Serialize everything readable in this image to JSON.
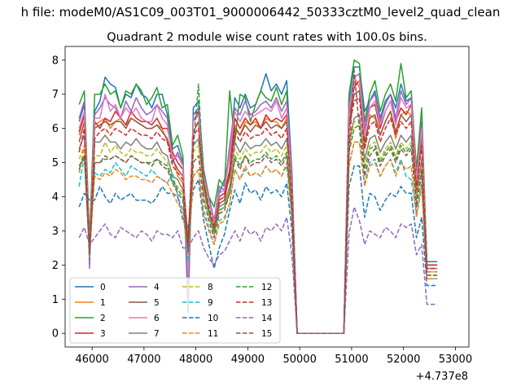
{
  "chart_data": {
    "type": "line",
    "suptitle": "h file: modeM0/AS1C09_003T01_9000006442_50333cztM0_level2_quad_clean",
    "title": "Quadrant 2 module wise count rates with 100.0s bins.",
    "xlabel": "",
    "ylabel": "",
    "x_offset_label": "+4.737e8",
    "xlim": [
      45480,
      53260
    ],
    "ylim": [
      -0.4,
      8.4
    ],
    "xticks": [
      46000,
      47000,
      48000,
      49000,
      50000,
      51000,
      52000,
      53000
    ],
    "yticks": [
      0,
      1,
      2,
      3,
      4,
      5,
      6,
      7,
      8
    ],
    "grid": false,
    "legend_position": "lower-left",
    "x": [
      45750,
      45850,
      45950,
      46050,
      46150,
      46250,
      46350,
      46450,
      46550,
      46650,
      46750,
      46850,
      46950,
      47050,
      47150,
      47250,
      47350,
      47450,
      47550,
      47650,
      47750,
      47850,
      47950,
      48050,
      48150,
      48250,
      48350,
      48450,
      48550,
      48650,
      48750,
      48850,
      48950,
      49050,
      49150,
      49250,
      49350,
      49450,
      49550,
      49650,
      49750,
      49850,
      49950,
      50050,
      50150,
      50250,
      50350,
      50450,
      50550,
      50650,
      50750,
      50850,
      50950,
      51050,
      51150,
      51250,
      51350,
      51450,
      51550,
      51650,
      51750,
      51850,
      51950,
      52050,
      52150,
      52250,
      52350,
      52450,
      52550,
      52650
    ],
    "series": [
      {
        "name": "0",
        "color": "#1f77b4",
        "dash": false,
        "values": [
          6.2,
          6.7,
          2.6,
          6.5,
          6.8,
          7.5,
          7.3,
          7.2,
          6.6,
          7.0,
          6.9,
          7.3,
          7.0,
          6.9,
          6.6,
          7.0,
          7.0,
          6.4,
          5.4,
          5.5,
          5.0,
          0.6,
          6.6,
          6.8,
          4.8,
          4.0,
          3.3,
          4.1,
          4.5,
          5.2,
          6.9,
          6.6,
          7.0,
          6.6,
          6.7,
          7.1,
          7.6,
          7.1,
          7.3,
          7.0,
          7.4,
          4.7,
          0,
          0,
          0,
          0,
          0,
          0,
          0,
          0,
          0,
          0,
          6.9,
          7.8,
          7.8,
          6.5,
          6.8,
          7.1,
          6.3,
          6.8,
          7.0,
          6.6,
          7.3,
          6.8,
          6.9,
          4.8,
          6.2,
          2.1,
          2.1,
          2.1
        ]
      },
      {
        "name": "1",
        "color": "#ff7f0e",
        "dash": false,
        "values": [
          5.8,
          6.4,
          2.6,
          6.1,
          6.2,
          6.3,
          6.0,
          6.2,
          6.3,
          6.1,
          6.3,
          6.2,
          6.1,
          6.0,
          6.0,
          6.1,
          6.0,
          5.6,
          5.2,
          4.6,
          4.4,
          2.6,
          5.9,
          6.2,
          4.5,
          3.6,
          3.0,
          3.9,
          4.0,
          4.6,
          6.1,
          5.8,
          6.2,
          6.1,
          6.2,
          6.0,
          6.3,
          6.2,
          6.2,
          6.0,
          6.3,
          4.2,
          0,
          0,
          0,
          0,
          0,
          0,
          0,
          0,
          0,
          0,
          6.0,
          7.5,
          7.2,
          5.4,
          6.4,
          6.3,
          5.8,
          6.2,
          6.5,
          5.7,
          6.4,
          6.5,
          6.4,
          4.2,
          5.6,
          1.9,
          1.9,
          1.9
        ]
      },
      {
        "name": "2",
        "color": "#2ca02c",
        "dash": false,
        "values": [
          6.7,
          7.1,
          2.7,
          7.0,
          7.0,
          7.3,
          7.0,
          7.1,
          6.6,
          7.1,
          7.0,
          7.3,
          7.1,
          6.7,
          6.9,
          7.2,
          6.6,
          6.7,
          5.5,
          5.8,
          5.2,
          0.8,
          6.4,
          6.5,
          4.7,
          4.0,
          3.7,
          4.5,
          4.3,
          7.1,
          5.6,
          7.0,
          6.9,
          6.2,
          6.7,
          7.1,
          6.9,
          6.8,
          7.2,
          6.7,
          7.1,
          4.2,
          0,
          0,
          0,
          0,
          0,
          0,
          0,
          0,
          0,
          0,
          7.0,
          8.0,
          7.9,
          6.2,
          7.0,
          7.4,
          6.5,
          7.0,
          7.3,
          6.8,
          7.9,
          6.9,
          7.1,
          4.8,
          6.6,
          2.0,
          2.0,
          2.0
        ]
      },
      {
        "name": "3",
        "color": "#d62728",
        "dash": false,
        "values": [
          5.9,
          6.4,
          2.4,
          6.2,
          6.0,
          6.3,
          6.2,
          6.5,
          6.3,
          6.1,
          6.5,
          6.3,
          6.2,
          6.2,
          6.1,
          6.3,
          6.0,
          6.0,
          5.3,
          5.0,
          4.8,
          2.3,
          6.2,
          6.5,
          4.6,
          3.9,
          3.2,
          4.0,
          4.1,
          4.8,
          6.3,
          6.0,
          6.3,
          6.1,
          6.3,
          6.0,
          6.4,
          6.2,
          6.3,
          6.2,
          6.4,
          4.4,
          0,
          0,
          0,
          0,
          0,
          0,
          0,
          0,
          0,
          0,
          6.4,
          7.2,
          7.4,
          5.9,
          6.6,
          6.7,
          6.0,
          6.5,
          6.8,
          6.2,
          6.6,
          6.4,
          6.7,
          4.6,
          5.9,
          2.0,
          2.0,
          2.0
        ]
      },
      {
        "name": "4",
        "color": "#9467bd",
        "dash": false,
        "values": [
          6.3,
          6.8,
          1.9,
          6.4,
          6.6,
          6.9,
          6.7,
          6.6,
          6.3,
          6.8,
          6.5,
          6.9,
          6.6,
          6.4,
          6.5,
          6.7,
          6.5,
          6.3,
          5.0,
          5.3,
          4.9,
          1.0,
          6.4,
          6.6,
          4.6,
          3.9,
          3.3,
          4.3,
          4.2,
          5.5,
          6.6,
          6.4,
          6.8,
          6.4,
          6.5,
          6.7,
          6.8,
          6.6,
          6.9,
          6.5,
          6.8,
          4.4,
          0,
          0,
          0,
          0,
          0,
          0,
          0,
          0,
          0,
          0,
          6.7,
          7.5,
          7.6,
          6.0,
          6.8,
          7.0,
          6.2,
          6.7,
          7.0,
          6.3,
          7.1,
          6.7,
          6.9,
          4.5,
          6.1,
          1.9,
          1.9,
          1.9
        ]
      },
      {
        "name": "5",
        "color": "#8c564b",
        "dash": false,
        "values": [
          5.6,
          6.2,
          2.5,
          6.0,
          6.1,
          6.2,
          6.1,
          6.2,
          6.2,
          6.0,
          6.3,
          6.2,
          6.1,
          6.0,
          6.0,
          6.1,
          5.9,
          5.7,
          5.1,
          4.8,
          4.6,
          2.7,
          5.9,
          6.2,
          4.4,
          3.6,
          3.0,
          3.8,
          3.9,
          4.7,
          6.0,
          5.8,
          6.1,
          5.9,
          6.1,
          6.0,
          6.2,
          6.0,
          6.1,
          6.0,
          6.2,
          4.1,
          0,
          0,
          0,
          0,
          0,
          0,
          0,
          0,
          0,
          0,
          6.1,
          7.0,
          7.1,
          5.6,
          6.3,
          6.4,
          5.8,
          6.2,
          6.5,
          5.9,
          6.4,
          6.2,
          6.4,
          4.4,
          5.7,
          1.9,
          1.9,
          1.9
        ]
      },
      {
        "name": "6",
        "color": "#e377c2",
        "dash": false,
        "values": [
          6.0,
          6.5,
          2.5,
          6.3,
          6.3,
          7.0,
          6.5,
          6.7,
          6.3,
          6.6,
          6.4,
          6.6,
          6.3,
          6.2,
          6.2,
          6.7,
          6.3,
          6.1,
          5.1,
          5.2,
          4.9,
          1.7,
          6.2,
          6.4,
          4.6,
          3.9,
          3.2,
          4.1,
          4.2,
          5.2,
          6.5,
          6.2,
          6.5,
          6.3,
          6.4,
          6.5,
          6.6,
          6.5,
          6.8,
          6.3,
          6.6,
          4.3,
          0,
          0,
          0,
          0,
          0,
          0,
          0,
          0,
          0,
          0,
          6.5,
          7.3,
          7.4,
          5.8,
          6.6,
          6.8,
          6.1,
          6.5,
          6.8,
          6.1,
          6.9,
          6.6,
          6.7,
          4.5,
          6.0,
          1.9,
          1.9,
          1.9
        ]
      },
      {
        "name": "7",
        "color": "#7f7f7f",
        "dash": false,
        "values": [
          5.4,
          5.8,
          2.3,
          5.6,
          5.6,
          5.8,
          5.6,
          5.6,
          5.4,
          5.6,
          5.5,
          5.7,
          5.5,
          5.4,
          5.4,
          5.6,
          5.3,
          5.2,
          4.6,
          4.5,
          4.2,
          2.4,
          5.5,
          5.7,
          4.2,
          3.5,
          2.9,
          3.7,
          3.8,
          4.3,
          5.6,
          5.3,
          5.6,
          5.4,
          5.5,
          5.5,
          5.7,
          5.5,
          5.6,
          5.4,
          5.7,
          3.9,
          0,
          0,
          0,
          0,
          0,
          0,
          0,
          0,
          0,
          0,
          5.6,
          6.3,
          6.4,
          5.1,
          5.7,
          5.8,
          5.3,
          5.6,
          5.8,
          5.4,
          5.8,
          5.6,
          5.8,
          4.0,
          5.1,
          1.8,
          1.8,
          1.8
        ]
      },
      {
        "name": "8",
        "color": "#bcbd22",
        "dash": true,
        "values": [
          5.1,
          5.5,
          2.2,
          5.2,
          5.2,
          5.6,
          5.3,
          5.5,
          5.3,
          5.2,
          5.4,
          5.3,
          5.3,
          5.2,
          5.2,
          5.4,
          5.2,
          5.0,
          4.4,
          4.3,
          4.1,
          2.5,
          5.3,
          5.5,
          4.0,
          3.4,
          2.9,
          3.6,
          3.7,
          4.2,
          5.4,
          5.1,
          5.4,
          5.2,
          5.3,
          5.3,
          5.5,
          5.3,
          5.4,
          5.2,
          5.5,
          3.8,
          0,
          0,
          0,
          0,
          0,
          0,
          0,
          0,
          0,
          0,
          5.4,
          6.2,
          6.2,
          4.9,
          5.5,
          5.6,
          5.1,
          5.4,
          5.6,
          5.2,
          5.6,
          5.4,
          5.6,
          3.9,
          4.9,
          1.8,
          1.8,
          1.8
        ]
      },
      {
        "name": "9",
        "color": "#17becf",
        "dash": true,
        "values": [
          4.3,
          5.2,
          2.3,
          4.7,
          4.6,
          4.8,
          4.7,
          5.0,
          4.8,
          4.6,
          4.9,
          4.8,
          4.7,
          4.6,
          4.8,
          4.6,
          4.5,
          4.4,
          4.7,
          4.0,
          3.6,
          2.1,
          4.6,
          4.8,
          3.6,
          3.1,
          2.6,
          3.3,
          3.4,
          3.8,
          4.8,
          4.5,
          4.8,
          4.6,
          4.7,
          4.6,
          4.9,
          4.7,
          4.8,
          4.6,
          4.9,
          3.4,
          0,
          0,
          0,
          0,
          0,
          0,
          0,
          0,
          0,
          0,
          4.9,
          5.6,
          5.6,
          4.4,
          5.0,
          5.1,
          4.6,
          4.9,
          5.1,
          4.7,
          5.1,
          4.6,
          4.5,
          3.5,
          4.4,
          1.6,
          1.6,
          1.6
        ]
      },
      {
        "name": "10",
        "color": "#1f77b4",
        "dash": true,
        "values": [
          3.7,
          4.1,
          3.9,
          3.9,
          4.3,
          4.0,
          3.8,
          4.1,
          3.9,
          4.0,
          4.1,
          3.9,
          3.9,
          3.9,
          3.8,
          4.0,
          4.3,
          4.1,
          4.1,
          4.0,
          3.3,
          3.1,
          4.2,
          4.5,
          3.3,
          2.6,
          1.9,
          2.5,
          2.9,
          3.6,
          4.2,
          3.8,
          4.4,
          4.1,
          4.2,
          3.9,
          4.3,
          4.1,
          4.2,
          4.0,
          4.4,
          3.0,
          0,
          0,
          0,
          0,
          0,
          0,
          0,
          0,
          0,
          0,
          4.3,
          4.9,
          4.9,
          3.4,
          4.1,
          4.0,
          3.6,
          3.9,
          4.1,
          4.0,
          4.3,
          4.1,
          4.1,
          2.8,
          3.4,
          1.4,
          1.4,
          1.4
        ]
      },
      {
        "name": "11",
        "color": "#ff7f0e",
        "dash": true,
        "values": [
          4.7,
          5.5,
          2.4,
          4.6,
          4.5,
          4.7,
          4.6,
          4.8,
          4.7,
          4.5,
          4.6,
          4.6,
          4.5,
          4.5,
          4.4,
          4.6,
          4.5,
          4.4,
          4.1,
          3.8,
          3.6,
          2.3,
          4.6,
          4.8,
          3.5,
          3.0,
          2.6,
          3.2,
          3.3,
          3.8,
          4.8,
          4.5,
          4.9,
          4.6,
          4.7,
          4.6,
          4.9,
          4.7,
          4.8,
          4.6,
          5.0,
          3.4,
          0,
          0,
          0,
          0,
          0,
          0,
          0,
          0,
          0,
          0,
          4.9,
          5.6,
          5.6,
          4.3,
          4.9,
          5.0,
          4.6,
          4.9,
          5.1,
          4.6,
          5.0,
          4.8,
          4.9,
          3.4,
          4.3,
          1.6,
          1.6,
          1.6
        ]
      },
      {
        "name": "12",
        "color": "#2ca02c",
        "dash": true,
        "values": [
          4.9,
          5.2,
          2.5,
          5.0,
          5.0,
          5.1,
          5.1,
          5.2,
          5.1,
          5.0,
          5.2,
          5.1,
          5.0,
          5.0,
          5.0,
          5.1,
          5.0,
          4.9,
          4.5,
          4.2,
          4.0,
          2.5,
          5.4,
          7.3,
          4.3,
          3.6,
          3.0,
          3.6,
          3.7,
          4.1,
          5.2,
          4.9,
          5.2,
          5.0,
          5.1,
          5.1,
          5.3,
          5.1,
          5.2,
          5.0,
          5.3,
          3.7,
          0,
          0,
          0,
          0,
          0,
          0,
          0,
          0,
          0,
          0,
          5.3,
          6.0,
          6.1,
          4.8,
          5.4,
          5.5,
          5.0,
          5.3,
          5.5,
          5.1,
          5.5,
          5.3,
          5.5,
          3.8,
          4.8,
          1.7,
          1.7,
          1.7
        ]
      },
      {
        "name": "13",
        "color": "#d62728",
        "dash": true,
        "values": [
          5.3,
          6.0,
          2.4,
          5.7,
          5.9,
          6.0,
          5.8,
          6.0,
          5.9,
          5.8,
          6.0,
          5.9,
          5.8,
          5.8,
          5.7,
          5.9,
          5.7,
          5.6,
          4.9,
          4.7,
          4.5,
          2.5,
          5.8,
          6.0,
          4.4,
          3.7,
          3.1,
          3.9,
          4.0,
          4.6,
          5.9,
          5.6,
          5.9,
          5.7,
          5.8,
          5.8,
          6.0,
          5.8,
          5.9,
          5.7,
          6.0,
          4.1,
          0,
          0,
          0,
          0,
          0,
          0,
          0,
          0,
          0,
          0,
          6.0,
          6.8,
          6.9,
          5.4,
          6.1,
          6.2,
          5.6,
          6.0,
          6.3,
          5.8,
          6.2,
          6.0,
          6.2,
          4.2,
          5.5,
          1.9,
          1.9,
          1.9
        ]
      },
      {
        "name": "14",
        "color": "#9467bd",
        "dash": true,
        "values": [
          2.8,
          3.1,
          2.6,
          2.8,
          3.0,
          3.2,
          2.9,
          2.8,
          3.1,
          3.0,
          2.9,
          2.8,
          3.0,
          2.9,
          2.7,
          3.0,
          2.9,
          2.9,
          2.8,
          3.0,
          2.5,
          2.5,
          2.8,
          3.0,
          2.5,
          2.2,
          2.0,
          2.3,
          2.4,
          2.7,
          3.0,
          2.7,
          3.1,
          2.9,
          3.0,
          2.7,
          3.1,
          3.0,
          3.2,
          3.0,
          3.4,
          2.3,
          0,
          0,
          0,
          0,
          0,
          0,
          0,
          0,
          0,
          0,
          2.9,
          3.7,
          3.3,
          2.6,
          3.0,
          2.9,
          2.8,
          3.1,
          3.0,
          2.8,
          3.2,
          3.1,
          3.2,
          2.3,
          2.6,
          0.85,
          0.85,
          0.85
        ]
      },
      {
        "name": "15",
        "color": "#8c564b",
        "dash": true,
        "values": [
          4.8,
          5.2,
          2.3,
          5.0,
          5.0,
          5.2,
          5.1,
          5.2,
          5.1,
          5.0,
          5.2,
          5.1,
          5.0,
          5.0,
          4.9,
          5.1,
          4.9,
          4.8,
          4.4,
          4.1,
          3.9,
          2.4,
          5.0,
          5.2,
          3.9,
          3.3,
          2.8,
          3.5,
          3.6,
          4.1,
          5.1,
          4.8,
          5.2,
          4.9,
          5.0,
          5.0,
          5.2,
          5.0,
          5.1,
          4.9,
          5.2,
          3.6,
          0,
          0,
          0,
          0,
          0,
          0,
          0,
          0,
          0,
          0,
          5.2,
          7.7,
          6.0,
          4.6,
          5.2,
          5.4,
          4.9,
          5.2,
          5.4,
          5.0,
          5.4,
          5.2,
          5.4,
          3.7,
          4.7,
          1.7,
          1.7,
          1.7
        ]
      }
    ]
  }
}
